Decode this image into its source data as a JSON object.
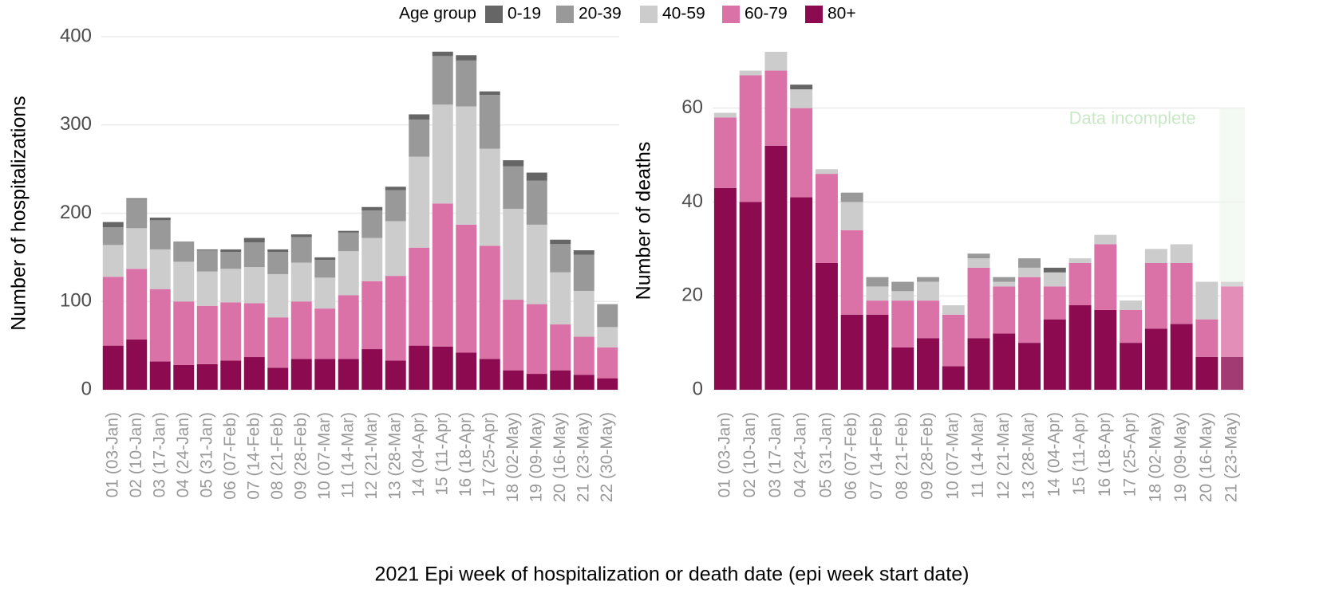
{
  "legend_title": "Age group",
  "xlabel": "2021 Epi week of hospitalization or death date (epi week start date)",
  "chart_data": [
    {
      "type": "bar",
      "stacked": true,
      "ylabel": "Number of hospitalizations",
      "categories": [
        "01 (03-Jan)",
        "02 (10-Jan)",
        "03 (17-Jan)",
        "04 (24-Jan)",
        "05 (31-Jan)",
        "06 (07-Feb)",
        "07 (14-Feb)",
        "08 (21-Feb)",
        "09 (28-Feb)",
        "10 (07-Mar)",
        "11 (14-Mar)",
        "12 (21-Mar)",
        "13 (28-Mar)",
        "14 (04-Apr)",
        "15 (11-Apr)",
        "16 (18-Apr)",
        "17 (25-Apr)",
        "18 (02-May)",
        "19 (09-May)",
        "20 (16-May)",
        "21 (23-May)",
        "22 (30-May)"
      ],
      "series": [
        {
          "name": "0-19",
          "color": "#666666",
          "values": [
            6,
            1,
            3,
            0,
            1,
            3,
            5,
            3,
            3,
            3,
            2,
            4,
            4,
            6,
            5,
            6,
            4,
            7,
            9,
            5,
            5,
            0
          ]
        },
        {
          "name": "20-39",
          "color": "#999999",
          "values": [
            20,
            33,
            33,
            23,
            24,
            19,
            28,
            25,
            29,
            20,
            21,
            31,
            35,
            42,
            55,
            52,
            61,
            48,
            50,
            32,
            41,
            26
          ]
        },
        {
          "name": "40-59",
          "color": "#cccccc",
          "values": [
            36,
            46,
            45,
            45,
            39,
            38,
            41,
            49,
            44,
            35,
            50,
            49,
            62,
            103,
            112,
            134,
            110,
            103,
            90,
            59,
            52,
            23
          ]
        },
        {
          "name": "60-79",
          "color": "#db72a7",
          "values": [
            78,
            80,
            82,
            72,
            66,
            66,
            61,
            57,
            65,
            57,
            72,
            77,
            96,
            111,
            162,
            145,
            128,
            80,
            79,
            52,
            43,
            35
          ]
        },
        {
          "name": "80+",
          "color": "#8b0a50",
          "values": [
            50,
            57,
            32,
            28,
            29,
            33,
            37,
            25,
            35,
            35,
            35,
            46,
            33,
            50,
            49,
            42,
            35,
            22,
            18,
            22,
            17,
            13
          ]
        }
      ],
      "ylim": [
        0,
        400
      ],
      "yticks": [
        0,
        100,
        200,
        300,
        400
      ],
      "grid": true
    },
    {
      "type": "bar",
      "stacked": true,
      "ylabel": "Number of deaths",
      "categories": [
        "01 (03-Jan)",
        "02 (10-Jan)",
        "03 (17-Jan)",
        "04 (24-Jan)",
        "05 (31-Jan)",
        "06 (07-Feb)",
        "07 (14-Feb)",
        "08 (21-Feb)",
        "09 (28-Feb)",
        "10 (07-Mar)",
        "11 (14-Mar)",
        "12 (21-Mar)",
        "13 (28-Mar)",
        "14 (04-Apr)",
        "15 (11-Apr)",
        "16 (18-Apr)",
        "17 (25-Apr)",
        "18 (02-May)",
        "19 (09-May)",
        "20 (16-May)",
        "21 (23-May)"
      ],
      "series": [
        {
          "name": "0-19",
          "color": "#666666",
          "values": [
            0,
            0,
            0,
            1,
            0,
            0,
            0,
            0,
            0,
            0,
            0,
            0,
            0,
            1,
            0,
            0,
            0,
            0,
            0,
            0,
            0
          ]
        },
        {
          "name": "20-39",
          "color": "#999999",
          "values": [
            0,
            0,
            0,
            0,
            0,
            2,
            2,
            2,
            1,
            0,
            1,
            1,
            2,
            0,
            0,
            0,
            0,
            0,
            0,
            0,
            0
          ]
        },
        {
          "name": "40-59",
          "color": "#cccccc",
          "values": [
            1,
            1,
            4,
            4,
            1,
            6,
            3,
            2,
            4,
            2,
            2,
            1,
            2,
            3,
            1,
            2,
            2,
            3,
            4,
            8,
            1
          ]
        },
        {
          "name": "60-79",
          "color": "#db72a7",
          "values": [
            15,
            27,
            16,
            19,
            19,
            18,
            3,
            10,
            8,
            11,
            15,
            10,
            14,
            7,
            9,
            14,
            7,
            14,
            13,
            8,
            15
          ]
        },
        {
          "name": "80+",
          "color": "#8b0a50",
          "values": [
            43,
            40,
            52,
            41,
            27,
            16,
            16,
            9,
            11,
            5,
            11,
            12,
            10,
            15,
            18,
            17,
            10,
            13,
            14,
            7,
            7
          ]
        }
      ],
      "ylim": [
        0,
        72
      ],
      "yticks": [
        0,
        20,
        40,
        60
      ],
      "grid": true,
      "annotation": "Data incomplete"
    }
  ]
}
